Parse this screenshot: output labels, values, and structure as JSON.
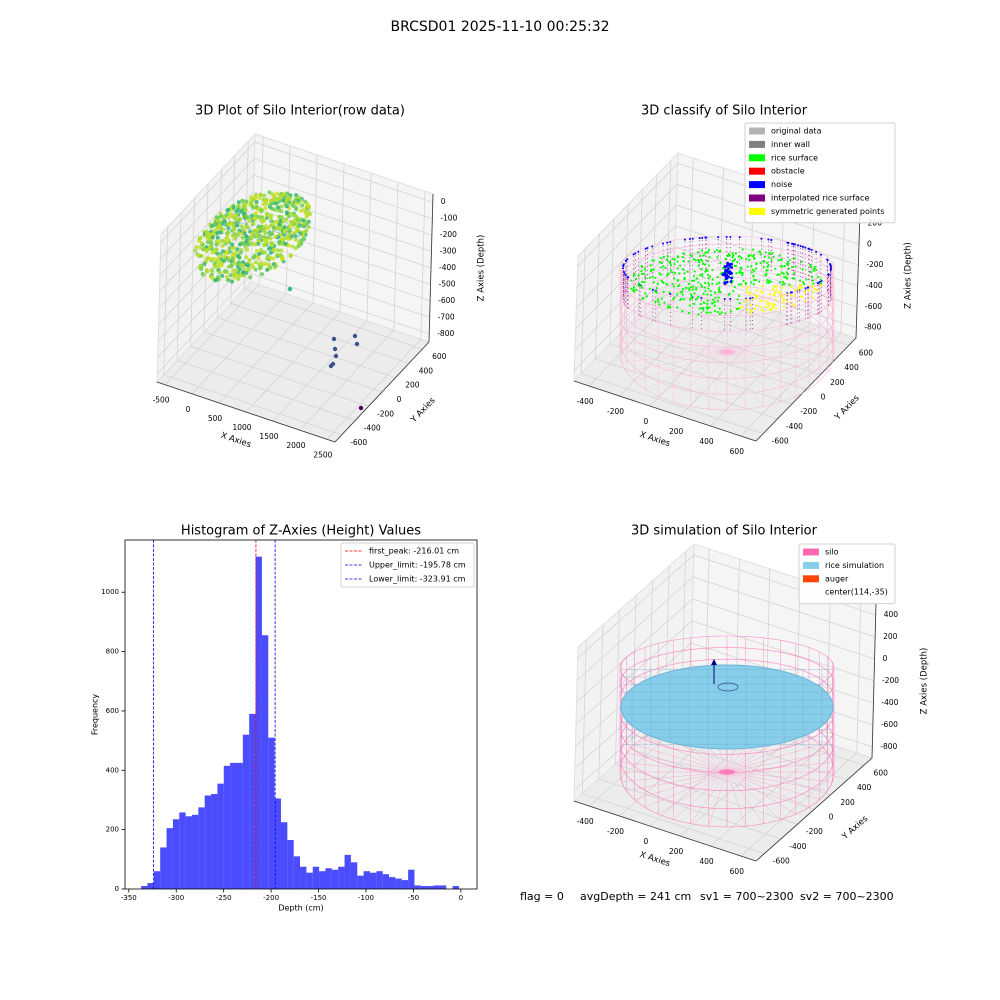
{
  "title": "BRCSD01 2025-11-10 00:25:32",
  "chart_data": [
    {
      "type": "scatter3d",
      "title": "3D Plot of Silo Interior(row data)",
      "xlabel": "X Axies",
      "ylabel": "Y Axies",
      "zlabel": "Z Axies (Depth)",
      "xlim": [
        -650,
        2650
      ],
      "ylim": [
        -700,
        700
      ],
      "zlim": [
        -850,
        50
      ],
      "xticks": [
        -500,
        0,
        500,
        1000,
        1500,
        2000,
        2500
      ],
      "yticks": [
        -600,
        -400,
        -200,
        0,
        200,
        400,
        600
      ],
      "zticks": [
        0,
        -100,
        -200,
        -300,
        -400,
        -500,
        -600,
        -700,
        -800
      ]
    },
    {
      "type": "scatter3d",
      "title": "3D classify of Silo Interior",
      "xlabel": "X Axies",
      "ylabel": "Y Axies",
      "zlabel": "Z Axies (Depth)",
      "xlim": [
        -500,
        700
      ],
      "ylim": [
        -700,
        700
      ],
      "zlim": [
        -900,
        300
      ],
      "xticks": [
        -400,
        -200,
        0,
        200,
        400,
        600
      ],
      "yticks": [
        -600,
        -400,
        -200,
        0,
        200,
        400,
        600
      ],
      "zticks": [
        200,
        0,
        -200,
        -400,
        -600,
        -800
      ],
      "legend_loc": "upper right",
      "legend_entries": [
        {
          "name": "original data",
          "color": "#b3b3b3"
        },
        {
          "name": "inner wall",
          "color": "#808080"
        },
        {
          "name": "rice surface",
          "color": "#00ff00"
        },
        {
          "name": "obstacle",
          "color": "#ff0000"
        },
        {
          "name": "noise",
          "color": "#0000ff"
        },
        {
          "name": "interpolated rice surface",
          "color": "#800080"
        },
        {
          "name": "symmetric generated points",
          "color": "#ffff00"
        }
      ]
    },
    {
      "type": "histogram",
      "title": "Histogram of Z-Axies (Height) Values",
      "xlabel": "Depth (cm)",
      "ylabel": "Frequency",
      "color": "#0000ff",
      "alpha": 0.7,
      "bins": [
        -337,
        -330.3,
        -323.6,
        -316.9,
        -310.2,
        -303.5,
        -296.8,
        -290.1,
        -283.4,
        -276.7,
        -270,
        -263.3,
        -256.6,
        -249.9,
        -243.2,
        -236.5,
        -229.8,
        -223.1,
        -216.4,
        -209.7,
        -203,
        -196.3,
        -189.6,
        -182.9,
        -176.2,
        -169.5,
        -162.8,
        -156.1,
        -149.4,
        -142.7,
        -136,
        -129.3,
        -122.6,
        -115.9,
        -109.2,
        -102.5,
        -95.8,
        -89.1,
        -82.4,
        -75.7,
        -69,
        -62.3,
        -55.6,
        -48.9,
        -42.2,
        -35.5,
        -28.8,
        -22.1,
        -15.4,
        -8.7,
        -2
      ],
      "counts": [
        10,
        20,
        60,
        140,
        205,
        235,
        258,
        245,
        250,
        275,
        315,
        320,
        355,
        415,
        425,
        425,
        520,
        590,
        1120,
        855,
        510,
        305,
        225,
        165,
        110,
        75,
        55,
        75,
        60,
        70,
        65,
        75,
        115,
        90,
        45,
        60,
        55,
        60,
        50,
        40,
        35,
        30,
        65,
        12,
        10,
        10,
        12,
        12,
        0,
        10
      ],
      "lines": [
        {
          "name": "first_peak: -216.01 cm",
          "value": -216.01,
          "color": "#ff0000"
        },
        {
          "name": "Upper_limit: -195.78 cm",
          "value": -195.78,
          "color": "#0000ff"
        },
        {
          "name": "Lower_limit: -323.91 cm",
          "value": -323.91,
          "color": "#0000ff"
        }
      ],
      "legend_loc": "upper right",
      "xlim": [
        -354,
        17
      ],
      "ylim": [
        0,
        1176
      ],
      "xticks": [
        -350,
        -300,
        -250,
        -200,
        -150,
        -100,
        -50,
        0
      ],
      "yticks": [
        0,
        200,
        400,
        600,
        800,
        1000
      ]
    },
    {
      "type": "surface3d",
      "title": "3D simulation of Silo Interior",
      "xlabel": "X Axies",
      "ylabel": "Y Axies",
      "zlabel": "Z Axies (Depth)",
      "xlim": [
        -500,
        700
      ],
      "ylim": [
        -700,
        700
      ],
      "zlim": [
        -900,
        500
      ],
      "xticks": [
        -400,
        -200,
        0,
        200,
        400,
        600
      ],
      "yticks": [
        -600,
        -400,
        -200,
        0,
        200,
        400,
        600
      ],
      "zticks": [
        400,
        200,
        0,
        -200,
        -400,
        -600,
        -800
      ],
      "legend_loc": "upper right",
      "legend_entries": [
        {
          "name": "silo",
          "color": "#ff69b4"
        },
        {
          "name": "rice simulation",
          "color": "#87ceeb"
        },
        {
          "name": "auger",
          "color": "#ff4500"
        },
        {
          "name": "center(114,-35)",
          "color": "#ffffff"
        }
      ]
    }
  ],
  "status": [
    "flag = 0",
    "avgDepth = 241 cm",
    "sv1 = 700~2300",
    "sv2 = 700~2300"
  ]
}
